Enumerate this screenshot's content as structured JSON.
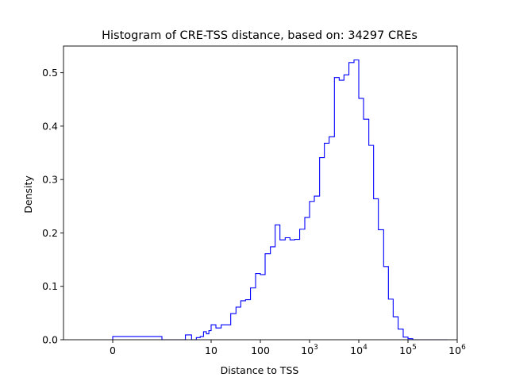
{
  "chart_data": {
    "type": "bar",
    "style": "step-histogram",
    "title": "Histogram of CRE-TSS distance, based on: 34297 CREs",
    "xlabel": "Distance to TSS",
    "ylabel": "Density",
    "xscale": "symlog",
    "xlim": [
      -1,
      1000000
    ],
    "ylim": [
      0,
      0.55
    ],
    "grid": false,
    "line_color": "#0000ff",
    "x_ticks": [
      {
        "value": 0,
        "label": "0"
      },
      {
        "value": 10,
        "label": "10"
      },
      {
        "value": 100,
        "label": "100"
      },
      {
        "value": 1000,
        "base": "10",
        "exp": "3"
      },
      {
        "value": 10000,
        "base": "10",
        "exp": "4"
      },
      {
        "value": 100000,
        "base": "10",
        "exp": "5"
      },
      {
        "value": 1000000,
        "base": "10",
        "exp": "6"
      }
    ],
    "y_ticks": [
      {
        "value": 0.0,
        "label": "0.0"
      },
      {
        "value": 0.1,
        "label": "0.1"
      },
      {
        "value": 0.2,
        "label": "0.2"
      },
      {
        "value": 0.3,
        "label": "0.3"
      },
      {
        "value": 0.4,
        "label": "0.4"
      },
      {
        "value": 0.5,
        "label": "0.5"
      }
    ],
    "bins": {
      "edges": [
        0,
        1,
        2,
        3,
        4,
        5,
        6,
        7,
        8,
        9,
        10,
        12.5,
        16,
        20,
        25,
        32,
        40,
        50,
        63,
        80,
        100,
        125,
        160,
        200,
        250,
        320,
        400,
        500,
        630,
        800,
        1000,
        1250,
        1600,
        2000,
        2500,
        3200,
        4000,
        5000,
        6300,
        8000,
        10000,
        12500,
        16000,
        20000,
        25000,
        32000,
        40000,
        50000,
        63000,
        80000,
        100000,
        125000,
        160000,
        200000,
        250000,
        320000,
        400000,
        500000,
        630000
      ],
      "density": [
        0.006,
        0.0,
        0.0,
        0.009,
        0.0,
        0.004,
        0.006,
        0.015,
        0.011,
        0.017,
        0.028,
        0.022,
        0.028,
        0.028,
        0.049,
        0.061,
        0.073,
        0.075,
        0.097,
        0.124,
        0.122,
        0.161,
        0.174,
        0.215,
        0.187,
        0.191,
        0.187,
        0.188,
        0.207,
        0.229,
        0.259,
        0.269,
        0.341,
        0.368,
        0.38,
        0.491,
        0.486,
        0.496,
        0.519,
        0.524,
        0.452,
        0.413,
        0.364,
        0.264,
        0.206,
        0.137,
        0.076,
        0.043,
        0.02,
        0.005,
        0.002,
        0.0,
        0.0,
        0.0,
        0.0,
        0.0,
        0.0,
        0.0
      ]
    }
  }
}
